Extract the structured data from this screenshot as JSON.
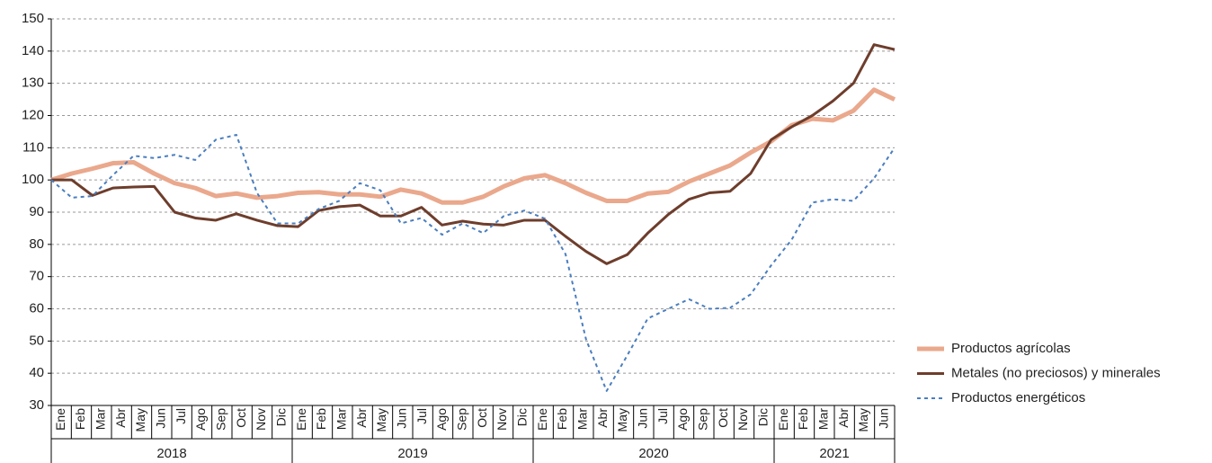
{
  "chart_data": {
    "type": "line",
    "categories": [
      "Ene",
      "Feb",
      "Mar",
      "Abr",
      "May",
      "Jun",
      "Jul",
      "Ago",
      "Sep",
      "Oct",
      "Nov",
      "Dic",
      "Ene",
      "Feb",
      "Mar",
      "Abr",
      "May",
      "Jun",
      "Jul",
      "Ago",
      "Sep",
      "Oct",
      "Nov",
      "Dic",
      "Ene",
      "Feb",
      "Mar",
      "Abr",
      "May",
      "Jun",
      "Jul",
      "Ago",
      "Sep",
      "Oct",
      "Nov",
      "Dic",
      "Ene",
      "Feb",
      "Mar",
      "Abr",
      "May",
      "Jun"
    ],
    "x_groups": [
      "2018",
      "2019",
      "2020",
      "2021"
    ],
    "series": [
      {
        "name": "Productos agrícolas",
        "color": "#eaa88c",
        "style": "solid",
        "width": 5,
        "values": [
          100,
          102,
          103.5,
          105.2,
          105.5,
          102,
          99,
          97.5,
          95,
          95.8,
          94.5,
          95,
          96,
          96.2,
          95.5,
          95.5,
          94.8,
          97,
          95.8,
          93,
          93,
          94.8,
          98,
          100.5,
          101.5,
          99,
          96,
          93.5,
          93.5,
          95.8,
          96.3,
          99.5,
          102,
          104.5,
          108.5,
          112,
          117,
          119,
          118.5,
          121.5,
          128,
          125
        ]
      },
      {
        "name": "Metales (no preciosos) y minerales",
        "color": "#6e3d2c",
        "style": "solid",
        "width": 3,
        "values": [
          100,
          100,
          95.2,
          97.5,
          97.8,
          98,
          90,
          88.2,
          87.5,
          89.5,
          87.5,
          85.8,
          85.5,
          90.5,
          91.7,
          92.2,
          88.8,
          88.8,
          91.5,
          86,
          87.2,
          86.3,
          86,
          87.5,
          87.5,
          82.5,
          77.8,
          74,
          76.8,
          83.5,
          89.3,
          94,
          96,
          96.5,
          102,
          112.5,
          116.5,
          120,
          124.5,
          130,
          142,
          140.5
        ]
      },
      {
        "name": "Productos energéticos",
        "color": "#4a7ebf",
        "style": "dashed",
        "width": 2,
        "values": [
          100,
          94.5,
          95,
          101.5,
          107.5,
          106.8,
          107.8,
          106.2,
          112.5,
          114,
          96,
          86.5,
          86.5,
          91,
          93.5,
          99,
          96.8,
          86.5,
          88.2,
          83,
          86.5,
          83.5,
          88.8,
          90.5,
          88,
          77,
          50.5,
          34.5,
          45.5,
          57,
          60,
          63,
          60,
          60.3,
          64.5,
          73.5,
          81.5,
          93,
          94,
          93.5,
          100.5,
          110
        ]
      }
    ],
    "ylim": [
      30,
      150
    ],
    "yticks": [
      30,
      40,
      50,
      60,
      70,
      80,
      90,
      100,
      110,
      120,
      130,
      140,
      150
    ],
    "grid": true,
    "legend": "right"
  }
}
